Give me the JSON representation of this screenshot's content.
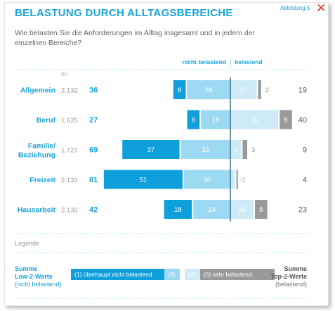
{
  "header": {
    "title": "BELASTUNG DURCH ALLTAGSBEREICHE",
    "figure_label": "Abbildung 5"
  },
  "question": "Wie belasten Sie die Anforderungen im Alltag insgesamt und in jedem der einzelnen Bereiche?",
  "chart_data": {
    "type": "bar",
    "orientation": "horizontal-diverging",
    "n_label": "n=",
    "left_header": "nicht belastend",
    "right_header": "belastend",
    "rows": [
      {
        "category": "Allgemein",
        "n": "2.132",
        "sum_left": 36,
        "seg1": 8,
        "seg2": 28,
        "seg4": 17,
        "seg5": 2,
        "sum_right": 19
      },
      {
        "category": "Beruf",
        "n": "1.625",
        "sum_left": 27,
        "seg1": 8,
        "seg2": 19,
        "seg4": 31,
        "seg5": 8,
        "sum_right": 40
      },
      {
        "category": "Familie/ Beziehung",
        "n": "1.727",
        "sum_left": 69,
        "seg1": 37,
        "seg2": 32,
        "seg4": 7,
        "seg5": 3,
        "sum_right": 9
      },
      {
        "category": "Freizeit",
        "n": "2.132",
        "sum_left": 81,
        "seg1": 51,
        "seg2": 30,
        "seg4": 3,
        "seg5": 1,
        "sum_right": 4
      },
      {
        "category": "Hausarbeit",
        "n": "2.132",
        "sum_left": 42,
        "seg1": 18,
        "seg2": 24,
        "seg4": 15,
        "seg5": 8,
        "sum_right": 23
      }
    ],
    "colors": {
      "seg1": "#0fa0db",
      "seg2": "#9cd9f2",
      "seg4": "#cfeaf7",
      "seg5": "#9a9a9a",
      "sum_left": "#1aa3d8",
      "sum_right": "#555555",
      "category": "#1aa3d8"
    }
  },
  "legend": {
    "title": "Legende",
    "sum_left_title_1": "Summe",
    "sum_left_title_2": "Low-2-Werte",
    "sum_left_sub": "(nicht belastend)",
    "item1": "(1) überhaupt nicht belastend",
    "item2": "(2)",
    "item4": "(4)",
    "item5": "(5) sehr belastend",
    "sum_right_title_1": "Summe",
    "sum_right_title_2": "Top-2-Werte",
    "sum_right_sub": "(belastend)"
  }
}
